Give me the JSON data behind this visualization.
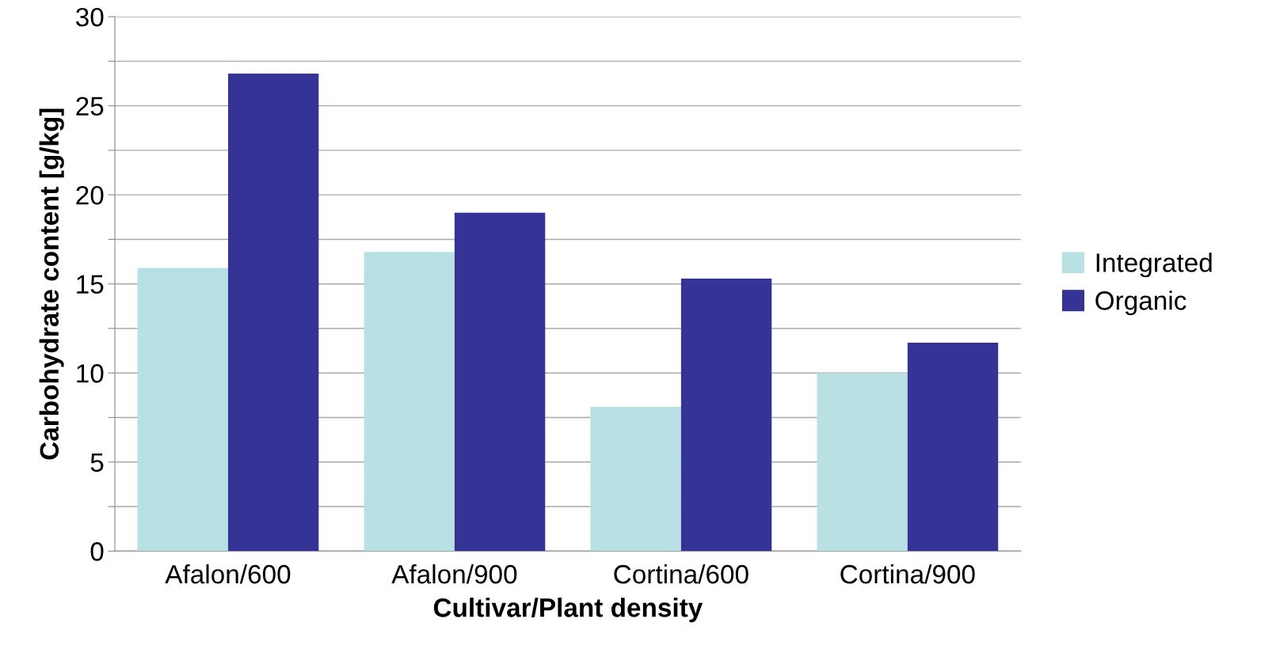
{
  "chart_data": {
    "type": "bar",
    "xlabel": "Cultivar/Plant density",
    "ylabel": "Carbohydrate content [g/kg]",
    "categories": [
      "Afalon/600",
      "Afalon/900",
      "Cortina/600",
      "Cortina/900"
    ],
    "series": [
      {
        "name": "Integrated",
        "color": "#b9e0e3",
        "values": [
          15.9,
          16.8,
          8.1,
          10.0
        ]
      },
      {
        "name": "Organic",
        "color": "#353396",
        "values": [
          26.8,
          19.0,
          15.3,
          11.7
        ]
      }
    ],
    "ylim": [
      0,
      30
    ],
    "yticks": [
      0,
      {
        "value": 2.5,
        "label": null
      },
      5,
      {
        "value": 7.5,
        "label": null
      },
      10,
      {
        "value": 12.5,
        "label": null
      },
      15,
      {
        "value": 17.5,
        "label": null
      },
      20,
      {
        "value": 22.5,
        "label": null
      },
      25,
      {
        "value": 27.5,
        "label": null
      },
      30
    ],
    "grid": "y",
    "legend": "right"
  }
}
